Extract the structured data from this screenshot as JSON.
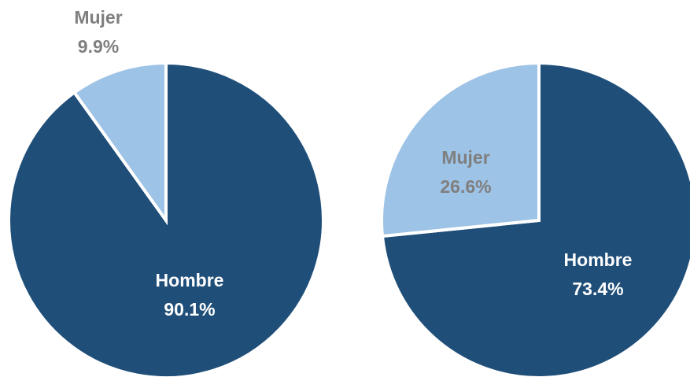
{
  "chart_data": [
    {
      "type": "pie",
      "categories": [
        "Hombre",
        "Mujer"
      ],
      "values": [
        90.1,
        9.9
      ],
      "value_labels": [
        "90.1%",
        "9.9%"
      ],
      "colors": [
        "#1f4e79",
        "#9dc3e6"
      ]
    },
    {
      "type": "pie",
      "categories": [
        "Hombre",
        "Mujer"
      ],
      "values": [
        73.4,
        26.6
      ],
      "value_labels": [
        "73.4%",
        "26.6%"
      ],
      "colors": [
        "#1f4e79",
        "#9dc3e6"
      ]
    }
  ]
}
